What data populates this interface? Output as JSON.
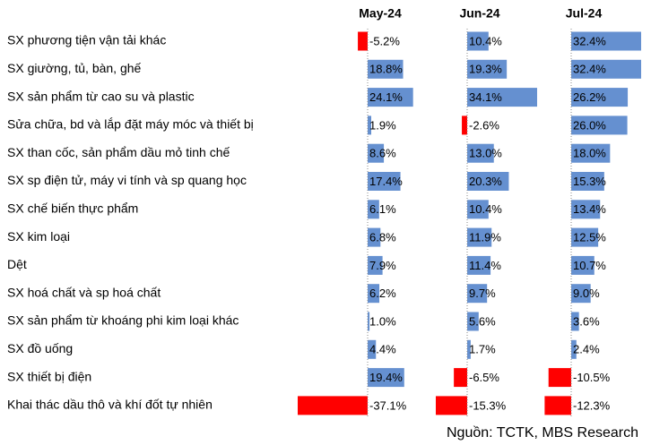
{
  "chart_data": {
    "type": "bar",
    "categories": [
      "SX phương tiện vận tải khác",
      "SX giường, tủ, bàn, ghế",
      "SX sản phẩm từ cao su và plastic",
      "Sửa chữa, bd và lắp đặt máy móc và thiết bị",
      "SX than cốc, sản phẩm dầu mỏ tinh chế",
      "SX sp điện tử, máy vi tính và sp quang học",
      "SX chế biến thực phẩm",
      "SX kim loại",
      "Dệt",
      "SX hoá chất và sp hoá chất",
      "SX sản phẩm từ khoáng phi kim loại khác",
      "SX đồ uống",
      "SX thiết bị điện",
      "Khai thác dầu thô và khí đốt tự nhiên"
    ],
    "color": "#6590d0",
    "negative_color": "#ff0000",
    "series": [
      {
        "name": "May-24",
        "values": [
          -5.2,
          18.8,
          24.1,
          1.9,
          8.6,
          17.4,
          6.1,
          6.8,
          7.9,
          6.2,
          1.0,
          4.4,
          19.4,
          -37.1
        ],
        "value_labels": [
          "-5.2%",
          "18.8%",
          "24.1%",
          "1.9%",
          "8.6%",
          "17.4%",
          "6.1%",
          "6.8%",
          "7.9%",
          "6.2%",
          "1.0%",
          "4.4%",
          "19.4%",
          "-37.1%"
        ]
      },
      {
        "name": "Jun-24",
        "values": [
          10.4,
          19.3,
          34.1,
          -2.6,
          13.0,
          20.3,
          10.4,
          11.9,
          11.4,
          9.7,
          5.6,
          1.7,
          -6.5,
          -15.3
        ],
        "value_labels": [
          "10.4%",
          "19.3%",
          "34.1%",
          "-2.6%",
          "13.0%",
          "20.3%",
          "10.4%",
          "11.9%",
          "11.4%",
          "9.7%",
          "5.6%",
          "1.7%",
          "-6.5%",
          "-15.3%"
        ]
      },
      {
        "name": "Jul-24",
        "values": [
          32.4,
          32.4,
          26.2,
          26.0,
          18.0,
          15.3,
          13.4,
          12.5,
          10.7,
          9.0,
          3.6,
          2.4,
          -10.5,
          -12.3
        ],
        "value_labels": [
          "32.4%",
          "32.4%",
          "26.2%",
          "26.0%",
          "18.0%",
          "15.3%",
          "13.4%",
          "12.5%",
          "10.7%",
          "9.0%",
          "3.6%",
          "2.4%",
          "-10.5%",
          "-12.3%"
        ]
      }
    ],
    "source": "Nguồn: TCTK, MBS Research"
  }
}
